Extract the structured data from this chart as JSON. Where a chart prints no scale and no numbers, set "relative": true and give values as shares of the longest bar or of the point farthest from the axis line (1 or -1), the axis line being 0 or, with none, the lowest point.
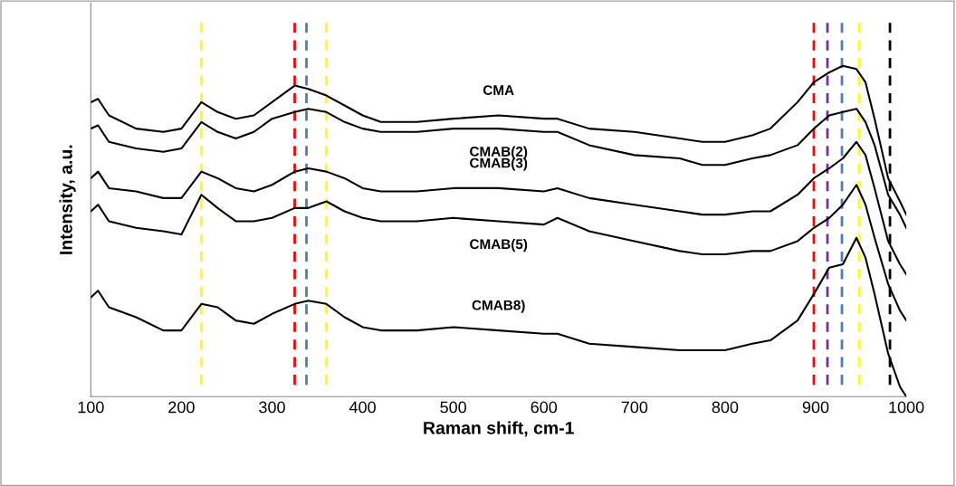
{
  "chart_data": {
    "type": "line",
    "relative": true,
    "xlabel": "Raman shift, cm-1",
    "ylabel": "Intensity, a.u.",
    "xlim": [
      100,
      1000
    ],
    "xticks": [
      100,
      200,
      300,
      400,
      500,
      600,
      700,
      800,
      900,
      1000
    ],
    "tick_labels": "x",
    "grid": false,
    "legend": false,
    "marker": "none",
    "line_style": "solid",
    "x": [
      100,
      108,
      120,
      150,
      180,
      200,
      222,
      240,
      260,
      280,
      300,
      325,
      340,
      360,
      380,
      400,
      420,
      460,
      500,
      550,
      600,
      615,
      650,
      700,
      750,
      775,
      800,
      830,
      850,
      880,
      898,
      915,
      930,
      945,
      955,
      965,
      980,
      993,
      1000
    ],
    "series": [
      {
        "name": "CMA",
        "color": "#000000",
        "values": [
          0.89,
          0.9,
          0.85,
          0.81,
          0.8,
          0.81,
          0.89,
          0.86,
          0.84,
          0.85,
          0.89,
          0.94,
          0.93,
          0.91,
          0.88,
          0.85,
          0.83,
          0.83,
          0.84,
          0.85,
          0.84,
          0.84,
          0.81,
          0.8,
          0.78,
          0.77,
          0.77,
          0.79,
          0.81,
          0.89,
          0.95,
          0.98,
          1.0,
          0.99,
          0.95,
          0.84,
          0.66,
          0.59,
          0.55
        ]
      },
      {
        "name": "CMAB(2)",
        "color": "#000000",
        "values": [
          0.81,
          0.82,
          0.77,
          0.75,
          0.74,
          0.75,
          0.83,
          0.8,
          0.78,
          0.8,
          0.84,
          0.86,
          0.87,
          0.86,
          0.83,
          0.81,
          0.8,
          0.8,
          0.81,
          0.81,
          0.8,
          0.8,
          0.76,
          0.73,
          0.72,
          0.7,
          0.7,
          0.72,
          0.73,
          0.76,
          0.81,
          0.85,
          0.86,
          0.87,
          0.83,
          0.76,
          0.61,
          0.55,
          0.51
        ]
      },
      {
        "name": "CMAB(3)",
        "color": "#000000",
        "values": [
          0.66,
          0.68,
          0.63,
          0.62,
          0.6,
          0.6,
          0.68,
          0.66,
          0.63,
          0.62,
          0.64,
          0.68,
          0.69,
          0.68,
          0.66,
          0.63,
          0.62,
          0.62,
          0.63,
          0.63,
          0.62,
          0.63,
          0.6,
          0.58,
          0.56,
          0.55,
          0.55,
          0.56,
          0.56,
          0.61,
          0.66,
          0.69,
          0.72,
          0.77,
          0.73,
          0.63,
          0.47,
          0.4,
          0.37
        ]
      },
      {
        "name": "CMAB(5)",
        "color": "#000000",
        "values": [
          0.56,
          0.58,
          0.53,
          0.51,
          0.5,
          0.49,
          0.61,
          0.57,
          0.53,
          0.53,
          0.54,
          0.57,
          0.57,
          0.59,
          0.56,
          0.54,
          0.53,
          0.53,
          0.54,
          0.53,
          0.52,
          0.54,
          0.5,
          0.47,
          0.44,
          0.43,
          0.43,
          0.44,
          0.44,
          0.47,
          0.51,
          0.54,
          0.58,
          0.64,
          0.58,
          0.48,
          0.34,
          0.26,
          0.23
        ]
      },
      {
        "name": "CMAB8)",
        "color": "#000000",
        "values": [
          0.3,
          0.32,
          0.27,
          0.24,
          0.2,
          0.2,
          0.28,
          0.27,
          0.23,
          0.22,
          0.25,
          0.28,
          0.29,
          0.28,
          0.24,
          0.21,
          0.2,
          0.2,
          0.21,
          0.2,
          0.19,
          0.19,
          0.16,
          0.15,
          0.14,
          0.14,
          0.14,
          0.16,
          0.17,
          0.23,
          0.31,
          0.39,
          0.4,
          0.48,
          0.42,
          0.31,
          0.13,
          0.03,
          0.0
        ]
      }
    ],
    "ref_lines": [
      {
        "axis": "x",
        "value": 222,
        "color": "#ffff00",
        "line_style": "dashed"
      },
      {
        "axis": "x",
        "value": 360,
        "color": "#ffff00",
        "line_style": "dashed"
      },
      {
        "axis": "x",
        "value": 948,
        "color": "#ffff00",
        "line_style": "dashed"
      },
      {
        "axis": "x",
        "value": 325,
        "color": "#ff0000",
        "line_style": "dashed"
      },
      {
        "axis": "x",
        "value": 898,
        "color": "#ff0000",
        "line_style": "dashed"
      },
      {
        "axis": "x",
        "value": 338,
        "color": "#4a7ebb",
        "line_style": "dashed"
      },
      {
        "axis": "x",
        "value": 929,
        "color": "#4a7ebb",
        "line_style": "dashed"
      },
      {
        "axis": "x",
        "value": 913,
        "color": "#7030a0",
        "line_style": "dashed"
      },
      {
        "axis": "x",
        "value": 982,
        "color": "#000000",
        "line_style": "dashed"
      }
    ]
  }
}
